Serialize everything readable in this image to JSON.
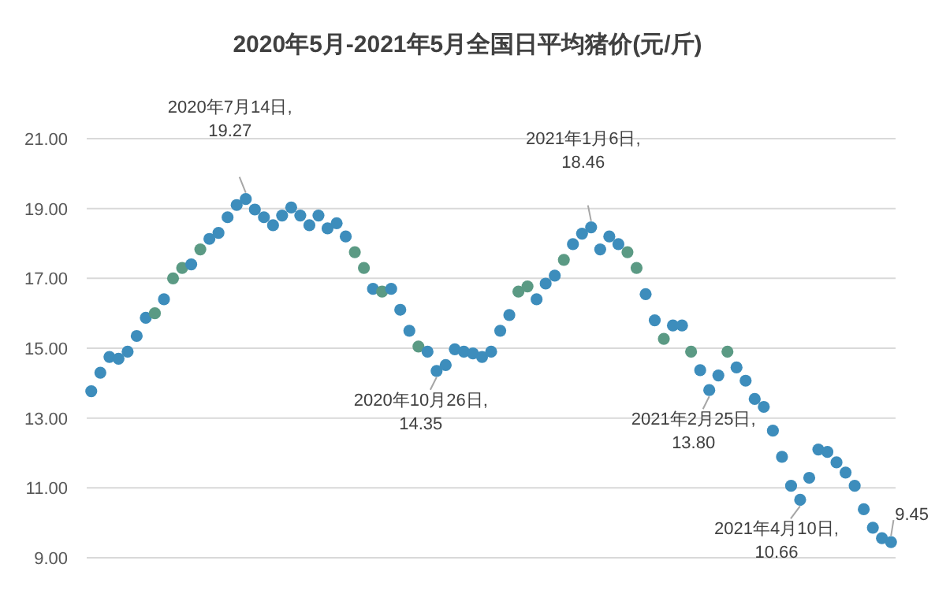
{
  "chart_data": {
    "type": "scatter",
    "title": "2020年5月-2021年5月全国日平均猪价(元/斤)",
    "categories": [
      null,
      null,
      null,
      null,
      null,
      null,
      null,
      null,
      null,
      null,
      null,
      null,
      null,
      null,
      null,
      null,
      null,
      null,
      null,
      null,
      null,
      null,
      null,
      null,
      null,
      null,
      null,
      null,
      null,
      null,
      null,
      null,
      null,
      null,
      null,
      null,
      null,
      null,
      null,
      null,
      null,
      null,
      null,
      null,
      null,
      null,
      null,
      null,
      null,
      null,
      null,
      null,
      null,
      null,
      null,
      null,
      null,
      null,
      null,
      null,
      null,
      null,
      null,
      null,
      null,
      null,
      null,
      null,
      null,
      null,
      null,
      null,
      null,
      null,
      null,
      null,
      null,
      null,
      null,
      null,
      null,
      null,
      null,
      null,
      null,
      null,
      null,
      null,
      null
    ],
    "values": [
      13.77,
      14.3,
      14.75,
      14.7,
      14.9,
      15.35,
      15.87,
      16.0,
      16.4,
      17.0,
      17.3,
      17.4,
      17.83,
      18.13,
      18.3,
      18.75,
      19.1,
      19.27,
      18.97,
      18.75,
      18.52,
      18.8,
      19.03,
      18.8,
      18.52,
      18.8,
      18.43,
      18.58,
      18.2,
      17.75,
      17.3,
      16.7,
      16.62,
      16.7,
      16.1,
      15.5,
      15.05,
      14.9,
      14.35,
      14.52,
      14.97,
      14.9,
      14.85,
      14.75,
      14.9,
      15.5,
      15.95,
      16.62,
      16.77,
      16.4,
      16.85,
      17.08,
      17.53,
      17.98,
      18.28,
      18.46,
      17.83,
      18.2,
      17.98,
      17.75,
      17.3,
      16.55,
      15.8,
      15.27,
      15.65,
      15.65,
      14.9,
      14.37,
      13.8,
      14.22,
      14.9,
      14.45,
      14.07,
      13.55,
      13.32,
      12.64,
      11.89,
      11.06,
      10.66,
      11.29,
      12.1,
      12.03,
      11.73,
      11.44,
      11.06,
      10.39,
      9.86,
      9.56,
      9.45
    ],
    "colors": [
      "#3d8dbc",
      "#3d8dbc",
      "#3d8dbc",
      "#3d8dbc",
      "#3d8dbc",
      "#3d8dbc",
      "#3d8dbc",
      "#5b9a84",
      "#3d8dbc",
      "#5b9a84",
      "#5b9a84",
      "#3d8dbc",
      "#5b9a84",
      "#3d8dbc",
      "#3d8dbc",
      "#3d8dbc",
      "#3d8dbc",
      "#3d8dbc",
      "#3d8dbc",
      "#3d8dbc",
      "#3d8dbc",
      "#3d8dbc",
      "#3d8dbc",
      "#3d8dbc",
      "#3d8dbc",
      "#3d8dbc",
      "#3d8dbc",
      "#3d8dbc",
      "#3d8dbc",
      "#5b9a84",
      "#5b9a84",
      "#3d8dbc",
      "#5b9a84",
      "#3d8dbc",
      "#3d8dbc",
      "#3d8dbc",
      "#5b9a84",
      "#3d8dbc",
      "#3d8dbc",
      "#3d8dbc",
      "#3d8dbc",
      "#3d8dbc",
      "#3d8dbc",
      "#3d8dbc",
      "#3d8dbc",
      "#3d8dbc",
      "#3d8dbc",
      "#5b9a84",
      "#5b9a84",
      "#3d8dbc",
      "#3d8dbc",
      "#3d8dbc",
      "#5b9a84",
      "#3d8dbc",
      "#3d8dbc",
      "#3d8dbc",
      "#3d8dbc",
      "#3d8dbc",
      "#3d8dbc",
      "#5b9a84",
      "#5b9a84",
      "#3d8dbc",
      "#3d8dbc",
      "#5b9a84",
      "#3d8dbc",
      "#3d8dbc",
      "#5b9a84",
      "#3d8dbc",
      "#3d8dbc",
      "#3d8dbc",
      "#5b9a84",
      "#3d8dbc",
      "#3d8dbc",
      "#3d8dbc",
      "#3d8dbc",
      "#3d8dbc",
      "#3d8dbc",
      "#3d8dbc",
      "#3d8dbc",
      "#3d8dbc",
      "#3d8dbc",
      "#3d8dbc",
      "#3d8dbc",
      "#3d8dbc",
      "#3d8dbc",
      "#3d8dbc",
      "#3d8dbc",
      "#3d8dbc",
      "#3d8dbc"
    ],
    "ylim": [
      9,
      21
    ],
    "yticks": [
      {
        "value": 9,
        "label": "9.00"
      },
      {
        "value": 11,
        "label": "11.00"
      },
      {
        "value": 13,
        "label": "13.00"
      },
      {
        "value": 15,
        "label": "15.00"
      },
      {
        "value": 17,
        "label": "17.00"
      },
      {
        "value": 19,
        "label": "19.00"
      },
      {
        "value": 21,
        "label": "21.00"
      }
    ],
    "grid": "y",
    "marker": "circle",
    "tick_labels": "y",
    "annotations": [
      "2020年7月14日,\n19.27",
      "2020年10月26日,\n14.35",
      "2021年1月6日,\n18.46",
      "2021年2月25日,\n13.80",
      "2021年4月10日,\n10.66",
      "9.45"
    ]
  }
}
